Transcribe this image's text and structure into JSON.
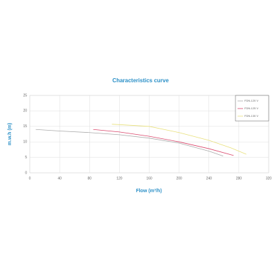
{
  "chart_data": {
    "type": "line",
    "title": "Characteristics curve",
    "x_label": "Flow (m³/h)",
    "y_label": "m.w.h (m)",
    "xlim": [
      0,
      320
    ],
    "xticks": [
      0,
      40,
      80,
      120,
      160,
      200,
      240,
      280,
      320
    ],
    "ylim": [
      0,
      25
    ],
    "yticks": [
      0,
      5,
      10,
      15,
      20,
      25
    ],
    "grid": true,
    "legend": "upper right",
    "series": [
      {
        "name": "FDN-120 V",
        "color": "#aaaaaa",
        "x": [
          8,
          40,
          80,
          120,
          160,
          200,
          240,
          259
        ],
        "values": [
          14,
          13.5,
          13,
          12.3,
          11.2,
          9.6,
          7,
          5.4
        ]
      },
      {
        "name": "FDN-125 V",
        "color": "#d9456a",
        "x": [
          85,
          120,
          160,
          200,
          240,
          273
        ],
        "values": [
          14,
          13.2,
          11.8,
          10,
          7.8,
          5.6
        ]
      },
      {
        "name": "FDN-130 V",
        "color": "#e8e07a",
        "x": [
          110,
          160,
          200,
          240,
          270,
          290
        ],
        "values": [
          15.7,
          15,
          13,
          10.5,
          8,
          6
        ]
      }
    ]
  }
}
